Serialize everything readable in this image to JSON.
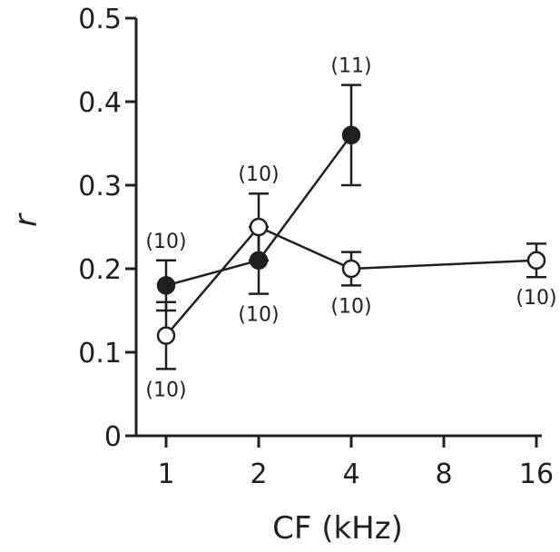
{
  "chart_data": {
    "type": "line",
    "xlabel": "CF (kHz)",
    "ylabel": "r",
    "x_scale": "log2",
    "x": [
      1,
      2,
      4,
      8,
      16
    ],
    "x_tick_labels": [
      "1",
      "2",
      "4",
      "8",
      "16"
    ],
    "ylim": [
      0,
      0.5
    ],
    "y_ticks": [
      0,
      0.1,
      0.2,
      0.3,
      0.4,
      0.5
    ],
    "y_tick_labels": [
      "0",
      "0.1",
      "0.2",
      "0.3",
      "0.4",
      "0.5"
    ],
    "grid": false,
    "series": [
      {
        "marker": "filled-circle",
        "color": "#231f20",
        "points": [
          {
            "x": 1,
            "y": 0.18,
            "err_low": 0.15,
            "err_high": 0.21,
            "n": "(10)",
            "n_pos": "above"
          },
          {
            "x": 2,
            "y": 0.21,
            "err_low": 0.17,
            "err_high": 0.25,
            "n": "(10)",
            "n_pos": "below"
          },
          {
            "x": 4,
            "y": 0.36,
            "err_low": 0.3,
            "err_high": 0.42,
            "n": "(11)",
            "n_pos": "above"
          }
        ]
      },
      {
        "marker": "open-circle",
        "color": "#231f20",
        "points": [
          {
            "x": 1,
            "y": 0.12,
            "err_low": 0.08,
            "err_high": 0.16,
            "n": "(10)",
            "n_pos": "below"
          },
          {
            "x": 2,
            "y": 0.25,
            "err_low": 0.21,
            "err_high": 0.29,
            "n": "(10)",
            "n_pos": "above"
          },
          {
            "x": 4,
            "y": 0.2,
            "err_low": 0.18,
            "err_high": 0.22,
            "n": "(10)",
            "n_pos": "below"
          },
          {
            "x": 16,
            "y": 0.21,
            "err_low": 0.19,
            "err_high": 0.23,
            "n": "(10)",
            "n_pos": "below"
          }
        ]
      }
    ]
  }
}
